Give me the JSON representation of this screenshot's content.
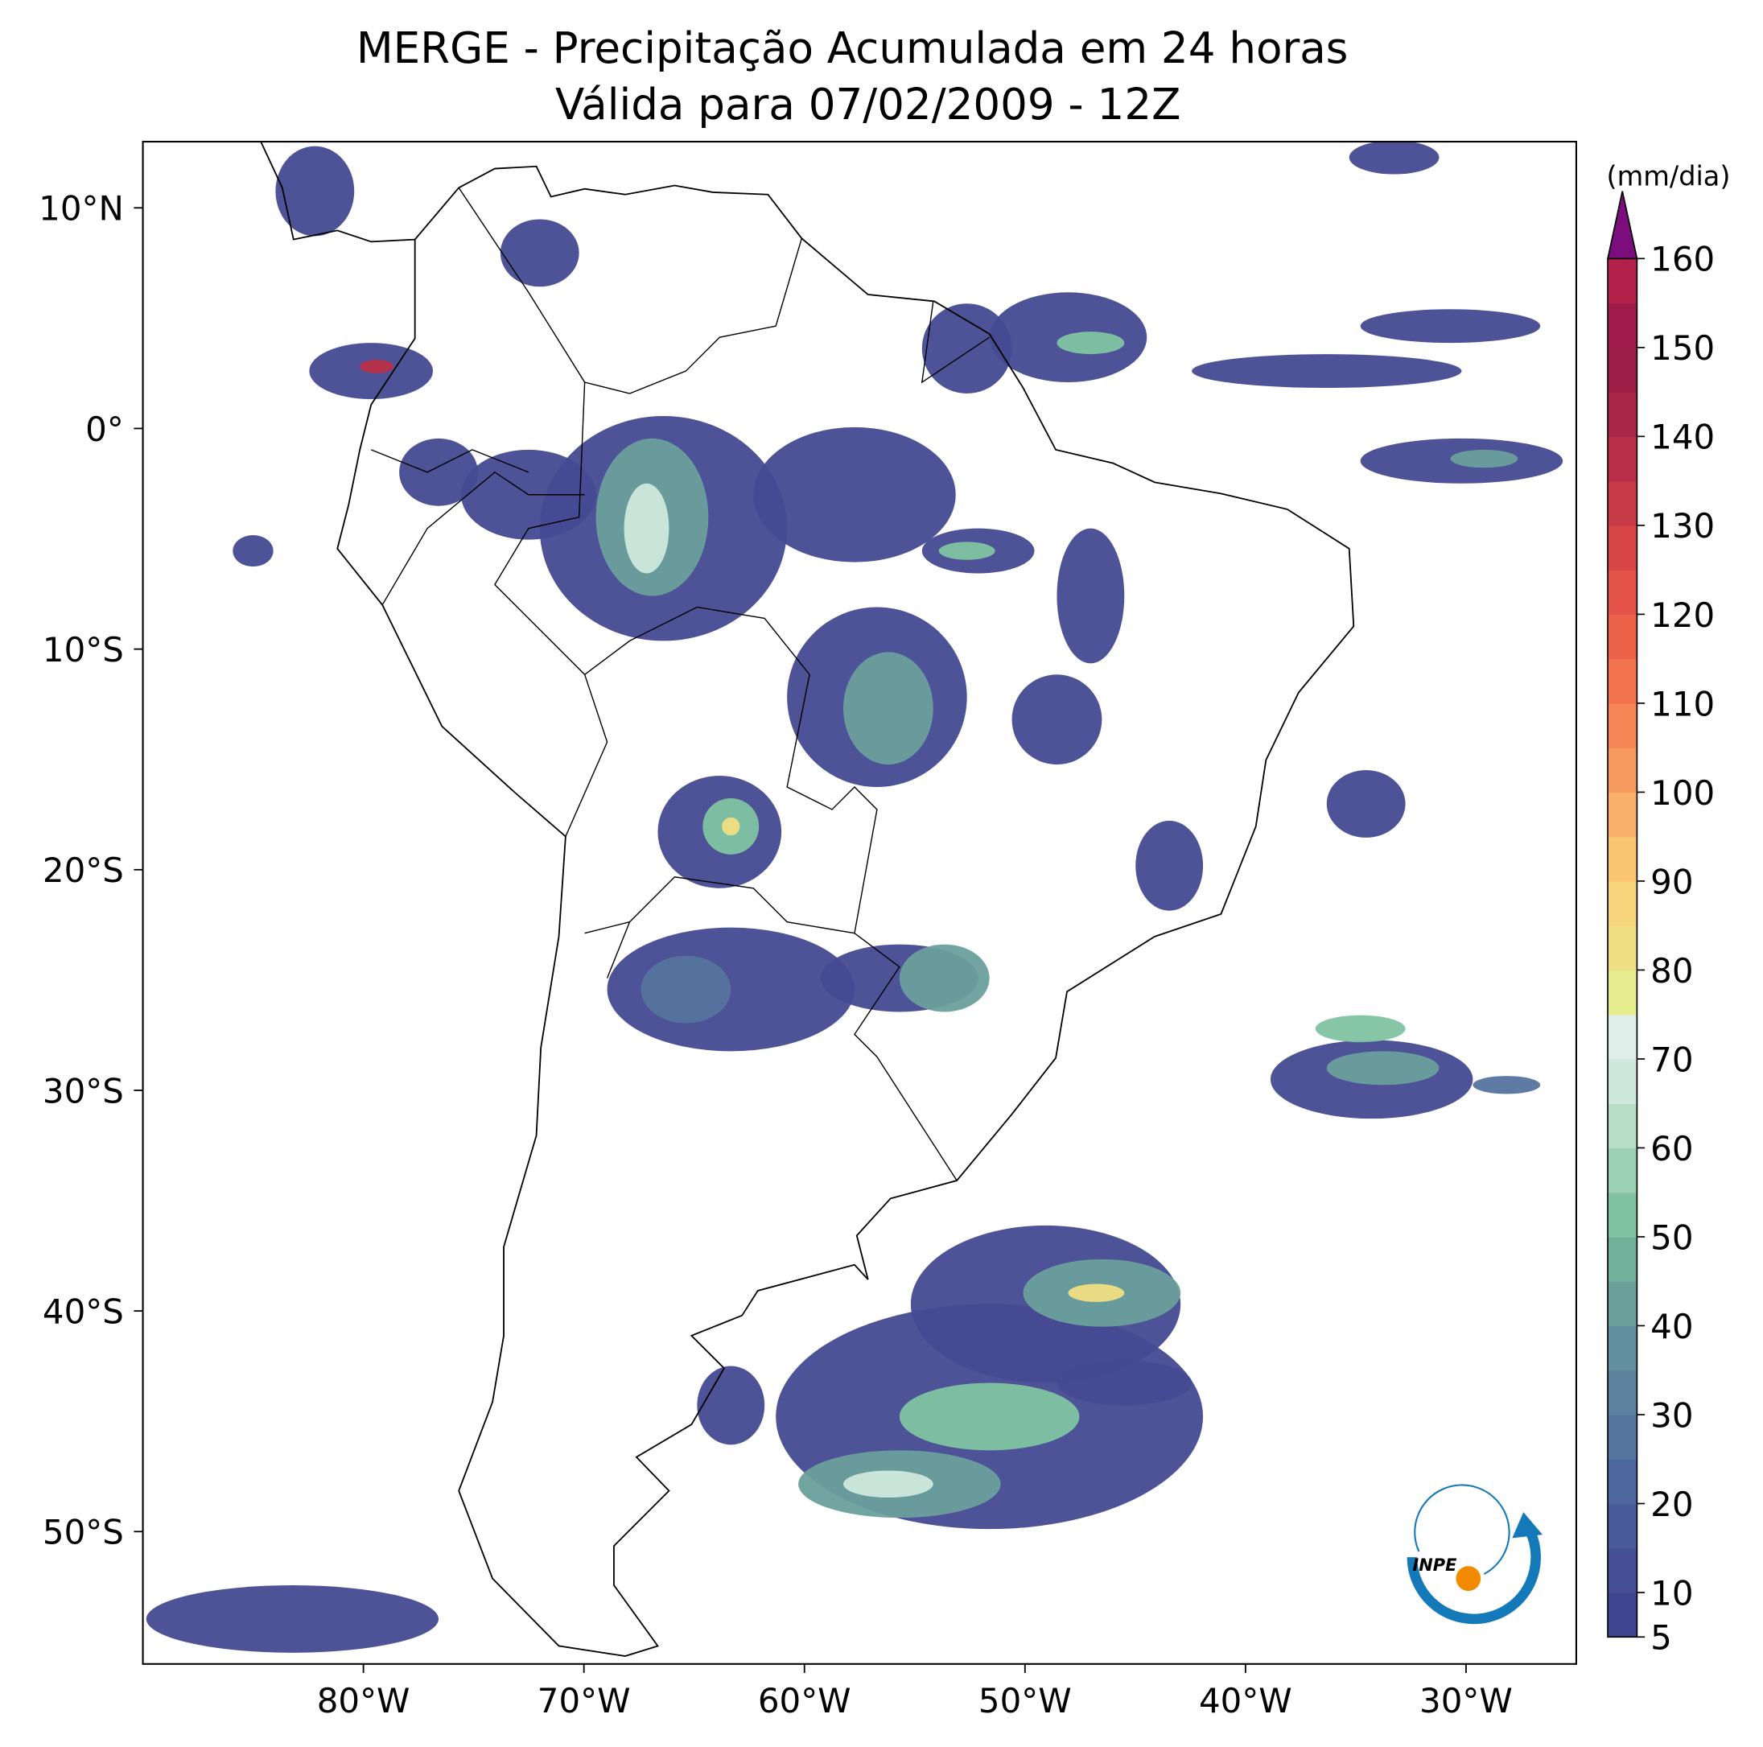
{
  "title": [
    "MERGE - Precipitação Acumulada em 24 horas",
    "Válida para 07/02/2009 - 12Z"
  ],
  "map": {
    "lonlim": [
      -90,
      -25
    ],
    "latlim": [
      -56,
      13
    ],
    "lon_ticks": [
      {
        "value": -80,
        "label": "80°W"
      },
      {
        "value": -70,
        "label": "70°W"
      },
      {
        "value": -60,
        "label": "60°W"
      },
      {
        "value": -50,
        "label": "50°W"
      },
      {
        "value": -40,
        "label": "40°W"
      },
      {
        "value": -30,
        "label": "30°W"
      }
    ],
    "lat_ticks": [
      {
        "value": 10,
        "label": "10°N"
      },
      {
        "value": 0,
        "label": "0°"
      },
      {
        "value": -10,
        "label": "10°S"
      },
      {
        "value": -20,
        "label": "20°S"
      },
      {
        "value": -30,
        "label": "30°S"
      },
      {
        "value": -40,
        "label": "40°S"
      },
      {
        "value": -50,
        "label": "50°S"
      }
    ]
  },
  "colorbar": {
    "unit": "(mm/dia)",
    "clim": [
      5,
      160
    ],
    "ticks": [
      5,
      10,
      20,
      30,
      40,
      50,
      60,
      70,
      80,
      90,
      100,
      110,
      120,
      130,
      140,
      150,
      160
    ],
    "colors": [
      "#41448f",
      "#454f96",
      "#4a5b9c",
      "#4f679f",
      "#55749f",
      "#5c819f",
      "#62909e",
      "#6a9f9c",
      "#72b09b",
      "#80c3a2",
      "#9bd1b2",
      "#b7ddc6",
      "#cfe8dc",
      "#e0efe9",
      "#e7ec8e",
      "#f0de82",
      "#f7d57c",
      "#fbc471",
      "#f9b068",
      "#f79a5e",
      "#f58757",
      "#f2744f",
      "#ec6249",
      "#e35347",
      "#d74546",
      "#c93a47",
      "#b92f47",
      "#aa2647",
      "#9c1d47",
      "#a01a4a",
      "#b3204a"
    ],
    "extend_color": "#7b0e7c"
  },
  "logo_text": "INPE"
}
